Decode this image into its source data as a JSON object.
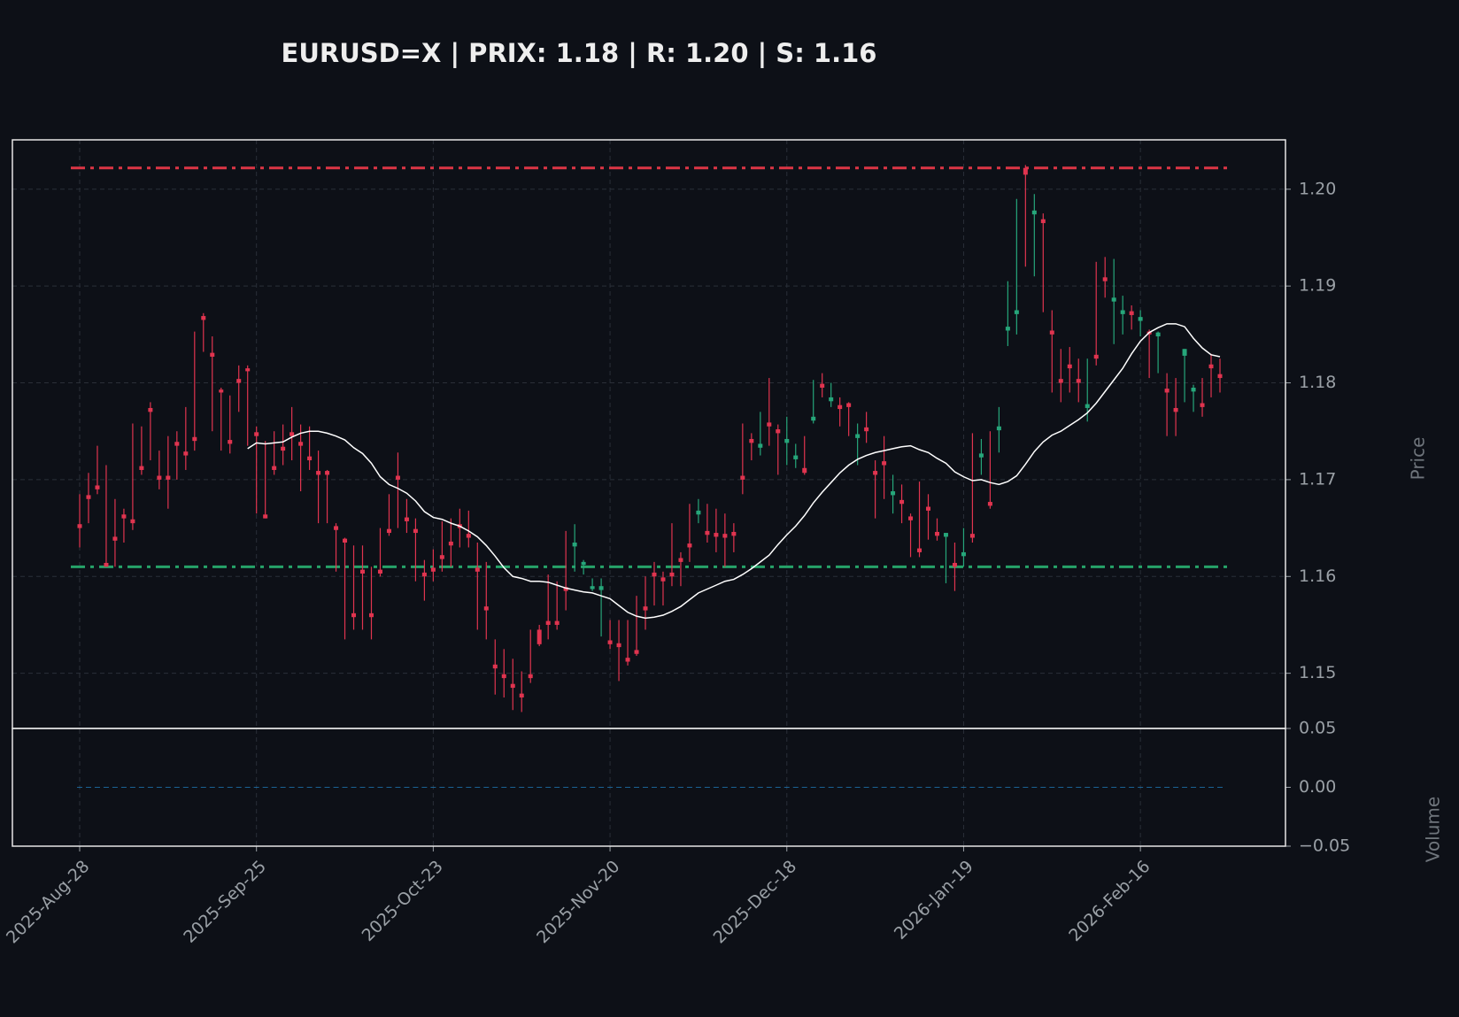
{
  "chart_data": {
    "type": "candlestick",
    "title": "EURUSD=X | PRIX: 1.18 | R: 1.20 | S: 1.16",
    "ylabel": "Price",
    "y2label": "Volume",
    "up_color": "#26a67a",
    "down_color": "#e0344f",
    "ma_color": "#ffffff",
    "volume_color": "#1f77b4",
    "grid": true,
    "categories": [
      "2025-Aug-28",
      null,
      null,
      null,
      null,
      null,
      null,
      null,
      null,
      null,
      null,
      null,
      null,
      null,
      null,
      null,
      null,
      null,
      null,
      null,
      "2025-Sep-25",
      null,
      null,
      null,
      null,
      null,
      null,
      null,
      null,
      null,
      null,
      null,
      null,
      null,
      null,
      null,
      null,
      null,
      null,
      null,
      "2025-Oct-23",
      null,
      null,
      null,
      null,
      null,
      null,
      null,
      null,
      null,
      null,
      null,
      null,
      null,
      null,
      null,
      null,
      null,
      null,
      null,
      "2025-Nov-20",
      null,
      null,
      null,
      null,
      null,
      null,
      null,
      null,
      null,
      null,
      null,
      null,
      null,
      null,
      null,
      null,
      null,
      null,
      null,
      "2025-Dec-18",
      null,
      null,
      null,
      null,
      null,
      null,
      null,
      null,
      null,
      null,
      null,
      null,
      null,
      null,
      null,
      null,
      null,
      null,
      null,
      "2026-Jan-19",
      null,
      null,
      null,
      null,
      null,
      null,
      null,
      null,
      null,
      null,
      null,
      null,
      null,
      null,
      null,
      null,
      null,
      null,
      null,
      "2026-Feb-16",
      null,
      null,
      null,
      null,
      null,
      null,
      null,
      null,
      null
    ],
    "ohlc": [
      [
        1.1654,
        1.1685,
        1.163,
        1.165
      ],
      [
        1.1684,
        1.1707,
        1.1655,
        1.168
      ],
      [
        1.1694,
        1.1735,
        1.1685,
        1.169
      ],
      [
        1.1614,
        1.1715,
        1.161,
        1.161
      ],
      [
        1.1641,
        1.168,
        1.161,
        1.1637
      ],
      [
        1.1664,
        1.167,
        1.1635,
        1.166
      ],
      [
        1.1659,
        1.1758,
        1.1648,
        1.1655
      ],
      [
        1.1714,
        1.1755,
        1.1705,
        1.171
      ],
      [
        1.1774,
        1.178,
        1.172,
        1.177
      ],
      [
        1.1704,
        1.173,
        1.169,
        1.17
      ],
      [
        1.1704,
        1.1745,
        1.167,
        1.17
      ],
      [
        1.1739,
        1.175,
        1.17,
        1.1735
      ],
      [
        1.1729,
        1.1775,
        1.171,
        1.1725
      ],
      [
        1.1744,
        1.1853,
        1.173,
        1.174
      ],
      [
        1.1869,
        1.1872,
        1.1832,
        1.1865
      ],
      [
        1.1831,
        1.1848,
        1.175,
        1.1827
      ],
      [
        1.1793,
        1.1795,
        1.173,
        1.179
      ],
      [
        1.1741,
        1.1787,
        1.1727,
        1.1737
      ],
      [
        1.1804,
        1.1818,
        1.177,
        1.18
      ],
      [
        1.1815,
        1.1818,
        1.1735,
        1.1812
      ],
      [
        1.1749,
        1.1755,
        1.1665,
        1.1745
      ],
      [
        1.1664,
        1.174,
        1.166,
        1.166
      ],
      [
        1.1714,
        1.175,
        1.1705,
        1.171
      ],
      [
        1.1734,
        1.1757,
        1.1715,
        1.173
      ],
      [
        1.1749,
        1.1775,
        1.172,
        1.1745
      ],
      [
        1.1739,
        1.1757,
        1.1688,
        1.1735
      ],
      [
        1.1724,
        1.1755,
        1.171,
        1.172
      ],
      [
        1.1709,
        1.173,
        1.1655,
        1.1705
      ],
      [
        1.1709,
        1.171,
        1.1655,
        1.1705
      ],
      [
        1.1652,
        1.1655,
        1.1605,
        1.1648
      ],
      [
        1.1639,
        1.164,
        1.1535,
        1.1635
      ],
      [
        1.1562,
        1.1632,
        1.1545,
        1.1558
      ],
      [
        1.1607,
        1.1632,
        1.1545,
        1.1603
      ],
      [
        1.1562,
        1.161,
        1.1535,
        1.1558
      ],
      [
        1.1607,
        1.165,
        1.16,
        1.1603
      ],
      [
        1.1649,
        1.1685,
        1.1642,
        1.1645
      ],
      [
        1.1704,
        1.1728,
        1.165,
        1.17
      ],
      [
        1.1661,
        1.168,
        1.1645,
        1.1657
      ],
      [
        1.1649,
        1.166,
        1.1595,
        1.1645
      ],
      [
        1.1604,
        1.1617,
        1.1575,
        1.16
      ],
      [
        1.1609,
        1.1628,
        1.1595,
        1.1605
      ],
      [
        1.1622,
        1.1657,
        1.1605,
        1.1618
      ],
      [
        1.1636,
        1.166,
        1.161,
        1.1632
      ],
      [
        1.1654,
        1.167,
        1.163,
        1.165
      ],
      [
        1.1644,
        1.1668,
        1.163,
        1.164
      ],
      [
        1.1609,
        1.1635,
        1.1545,
        1.1605
      ],
      [
        1.1569,
        1.1615,
        1.1535,
        1.1565
      ],
      [
        1.1509,
        1.1535,
        1.1478,
        1.1505
      ],
      [
        1.1499,
        1.1525,
        1.1475,
        1.1495
      ],
      [
        1.1489,
        1.1515,
        1.1462,
        1.1485
      ],
      [
        1.1479,
        1.1502,
        1.146,
        1.1475
      ],
      [
        1.1499,
        1.1545,
        1.149,
        1.1495
      ],
      [
        1.1545,
        1.155,
        1.1528,
        1.153
      ],
      [
        1.1554,
        1.1602,
        1.1535,
        1.155
      ],
      [
        1.1554,
        1.1595,
        1.1545,
        1.155
      ],
      [
        1.1589,
        1.1647,
        1.1565,
        1.1585
      ],
      [
        1.1631,
        1.1654,
        1.1605,
        1.1635
      ],
      [
        1.1612,
        1.1617,
        1.1602,
        1.1615
      ],
      [
        1.1587,
        1.1598,
        1.1585,
        1.159
      ],
      [
        1.1586,
        1.1598,
        1.1538,
        1.159
      ],
      [
        1.1534,
        1.1555,
        1.1525,
        1.153
      ],
      [
        1.1531,
        1.1555,
        1.1492,
        1.1527
      ],
      [
        1.1516,
        1.1555,
        1.1508,
        1.1512
      ],
      [
        1.1524,
        1.158,
        1.1518,
        1.152
      ],
      [
        1.1569,
        1.16,
        1.1545,
        1.1565
      ],
      [
        1.1604,
        1.1615,
        1.157,
        1.16
      ],
      [
        1.1599,
        1.1605,
        1.157,
        1.1595
      ],
      [
        1.1604,
        1.1655,
        1.159,
        1.16
      ],
      [
        1.1619,
        1.1625,
        1.159,
        1.1615
      ],
      [
        1.1634,
        1.1675,
        1.1615,
        1.163
      ],
      [
        1.1664,
        1.168,
        1.1655,
        1.1668
      ],
      [
        1.1647,
        1.1675,
        1.1635,
        1.1643
      ],
      [
        1.1645,
        1.167,
        1.1625,
        1.1641
      ],
      [
        1.1644,
        1.1665,
        1.161,
        1.164
      ],
      [
        1.1646,
        1.1655,
        1.1625,
        1.1642
      ],
      [
        1.1704,
        1.1758,
        1.1685,
        1.17
      ],
      [
        1.1742,
        1.1748,
        1.172,
        1.1738
      ],
      [
        1.1733,
        1.177,
        1.1725,
        1.1737
      ],
      [
        1.1759,
        1.1805,
        1.1735,
        1.1755
      ],
      [
        1.1752,
        1.1757,
        1.1705,
        1.1748
      ],
      [
        1.1738,
        1.1765,
        1.1715,
        1.1742
      ],
      [
        1.1721,
        1.1737,
        1.1712,
        1.1725
      ],
      [
        1.1712,
        1.1745,
        1.1705,
        1.1707
      ],
      [
        1.1761,
        1.1803,
        1.1758,
        1.1765
      ],
      [
        1.1799,
        1.181,
        1.1785,
        1.1795
      ],
      [
        1.1781,
        1.18,
        1.1775,
        1.1785
      ],
      [
        1.1777,
        1.1785,
        1.1755,
        1.1773
      ],
      [
        1.1779,
        1.178,
        1.1745,
        1.1775
      ],
      [
        1.1743,
        1.1758,
        1.1715,
        1.1747
      ],
      [
        1.1754,
        1.177,
        1.1738,
        1.175
      ],
      [
        1.1709,
        1.172,
        1.166,
        1.1705
      ],
      [
        1.1719,
        1.1745,
        1.168,
        1.1715
      ],
      [
        1.1684,
        1.1705,
        1.1665,
        1.1688
      ],
      [
        1.1679,
        1.1695,
        1.1655,
        1.1675
      ],
      [
        1.1662,
        1.1665,
        1.162,
        1.1658
      ],
      [
        1.1629,
        1.1698,
        1.162,
        1.1625
      ],
      [
        1.1672,
        1.1685,
        1.1638,
        1.1668
      ],
      [
        1.1646,
        1.166,
        1.1637,
        1.1642
      ],
      [
        1.1641,
        1.1645,
        1.1593,
        1.1645
      ],
      [
        1.1614,
        1.1635,
        1.1585,
        1.161
      ],
      [
        1.1621,
        1.165,
        1.161,
        1.1625
      ],
      [
        1.1644,
        1.1748,
        1.1635,
        1.164
      ],
      [
        1.1723,
        1.1742,
        1.1705,
        1.1727
      ],
      [
        1.1677,
        1.175,
        1.167,
        1.1673
      ],
      [
        1.1751,
        1.1775,
        1.1728,
        1.1755
      ],
      [
        1.1854,
        1.1905,
        1.1838,
        1.1858
      ],
      [
        1.1871,
        1.199,
        1.185,
        1.1875
      ],
      [
        1.2022,
        1.2025,
        1.192,
        1.2015
      ],
      [
        1.1974,
        1.1995,
        1.191,
        1.1978
      ],
      [
        1.1969,
        1.1975,
        1.1873,
        1.1965
      ],
      [
        1.1854,
        1.1875,
        1.179,
        1.185
      ],
      [
        1.1804,
        1.1835,
        1.178,
        1.18
      ],
      [
        1.1819,
        1.1837,
        1.179,
        1.1815
      ],
      [
        1.1804,
        1.1825,
        1.178,
        1.18
      ],
      [
        1.1774,
        1.1825,
        1.176,
        1.1778
      ],
      [
        1.1829,
        1.1925,
        1.1818,
        1.1825
      ],
      [
        1.1909,
        1.193,
        1.1888,
        1.1905
      ],
      [
        1.1884,
        1.1928,
        1.184,
        1.1888
      ],
      [
        1.1871,
        1.189,
        1.185,
        1.1875
      ],
      [
        1.1874,
        1.188,
        1.1855,
        1.187
      ],
      [
        1.1864,
        1.1875,
        1.1848,
        1.1868
      ],
      [
        1.1853,
        1.1855,
        1.1805,
        1.185
      ],
      [
        1.1848,
        1.1853,
        1.181,
        1.1852
      ],
      [
        1.1794,
        1.181,
        1.1745,
        1.179
      ],
      [
        1.1774,
        1.1805,
        1.1745,
        1.177
      ],
      [
        1.1828,
        1.1835,
        1.178,
        1.1835
      ],
      [
        1.1791,
        1.1798,
        1.177,
        1.1795
      ],
      [
        1.1779,
        1.1805,
        1.1765,
        1.1775
      ],
      [
        1.1819,
        1.183,
        1.1785,
        1.1815
      ],
      [
        1.1809,
        1.1825,
        1.179,
        1.1805
      ]
    ],
    "ma": [
      null,
      null,
      null,
      null,
      null,
      null,
      null,
      null,
      null,
      null,
      null,
      null,
      null,
      null,
      null,
      null,
      null,
      null,
      null,
      1.1732,
      1.1738,
      1.1737,
      1.1738,
      1.1739,
      1.1744,
      1.1748,
      1.175,
      1.175,
      1.1748,
      1.1745,
      1.1741,
      1.1733,
      1.1727,
      1.1717,
      1.1703,
      1.1695,
      1.1691,
      1.1686,
      1.1678,
      1.1667,
      1.1661,
      1.1659,
      1.1655,
      1.1652,
      1.1647,
      1.1641,
      1.1632,
      1.1621,
      1.1609,
      1.16,
      1.1598,
      1.1595,
      1.1595,
      1.1594,
      1.1591,
      1.1588,
      1.1586,
      1.1584,
      1.1583,
      1.158,
      1.1577,
      1.157,
      1.1563,
      1.1559,
      1.1557,
      1.1558,
      1.156,
      1.1564,
      1.1569,
      1.1576,
      1.1583,
      1.1587,
      1.1591,
      1.1595,
      1.1597,
      1.1602,
      1.1608,
      1.1615,
      1.1622,
      1.1633,
      1.1643,
      1.1652,
      1.1663,
      1.1676,
      1.1687,
      1.1697,
      1.1707,
      1.1715,
      1.1721,
      1.1725,
      1.1728,
      1.173,
      1.1732,
      1.1734,
      1.1735,
      1.1731,
      1.1728,
      1.1722,
      1.1717,
      1.1708,
      1.1703,
      1.1699,
      1.17,
      1.1697,
      1.1695,
      1.1698,
      1.1704,
      1.1716,
      1.1729,
      1.1739,
      1.1746,
      1.175,
      1.1756,
      1.1762,
      1.1769,
      1.1779,
      1.1791,
      1.1803,
      1.1815,
      1.183,
      1.1843,
      1.1852,
      1.1857,
      1.1861,
      1.1861,
      1.1858,
      1.1846,
      1.1836,
      1.1829,
      1.1827
    ],
    "volume": [
      0,
      0,
      0,
      0,
      0,
      0,
      0,
      0,
      0,
      0,
      0,
      0,
      0,
      0,
      0,
      0,
      0,
      0,
      0,
      0,
      0,
      0,
      0,
      0,
      0,
      0,
      0,
      0,
      0,
      0,
      0,
      0,
      0,
      0,
      0,
      0,
      0,
      0,
      0,
      0,
      0,
      0,
      0,
      0,
      0,
      0,
      0,
      0,
      0,
      0,
      0,
      0,
      0,
      0,
      0,
      0,
      0,
      0,
      0,
      0,
      0,
      0,
      0,
      0,
      0,
      0,
      0,
      0,
      0,
      0,
      0,
      0,
      0,
      0,
      0,
      0,
      0,
      0,
      0,
      0,
      0,
      0,
      0,
      0,
      0,
      0,
      0,
      0,
      0,
      0,
      0,
      0,
      0,
      0,
      0,
      0,
      0,
      0,
      0,
      0,
      0,
      0,
      0,
      0,
      0,
      0,
      0,
      0,
      0,
      0,
      0,
      0,
      0,
      0,
      0,
      0,
      0,
      0,
      0,
      0,
      0,
      0,
      0,
      0,
      0,
      0,
      0,
      0,
      0,
      0
    ],
    "hlines": [
      {
        "value": 1.2022,
        "color": "#dc3545"
      },
      {
        "value": 1.161,
        "color": "#26a269"
      }
    ],
    "ylim": [
      1.1443,
      1.2051
    ],
    "yticks": [
      1.15,
      1.16,
      1.17,
      1.18,
      1.19,
      {
        "value": 1.2,
        "label": "1.20"
      }
    ],
    "y2lim": [
      -0.05,
      0.05
    ],
    "y2ticks": [
      {
        "value": -0.05,
        "label": "−0.05"
      },
      {
        "value": 0,
        "label": "0.00"
      },
      0.05
    ]
  }
}
